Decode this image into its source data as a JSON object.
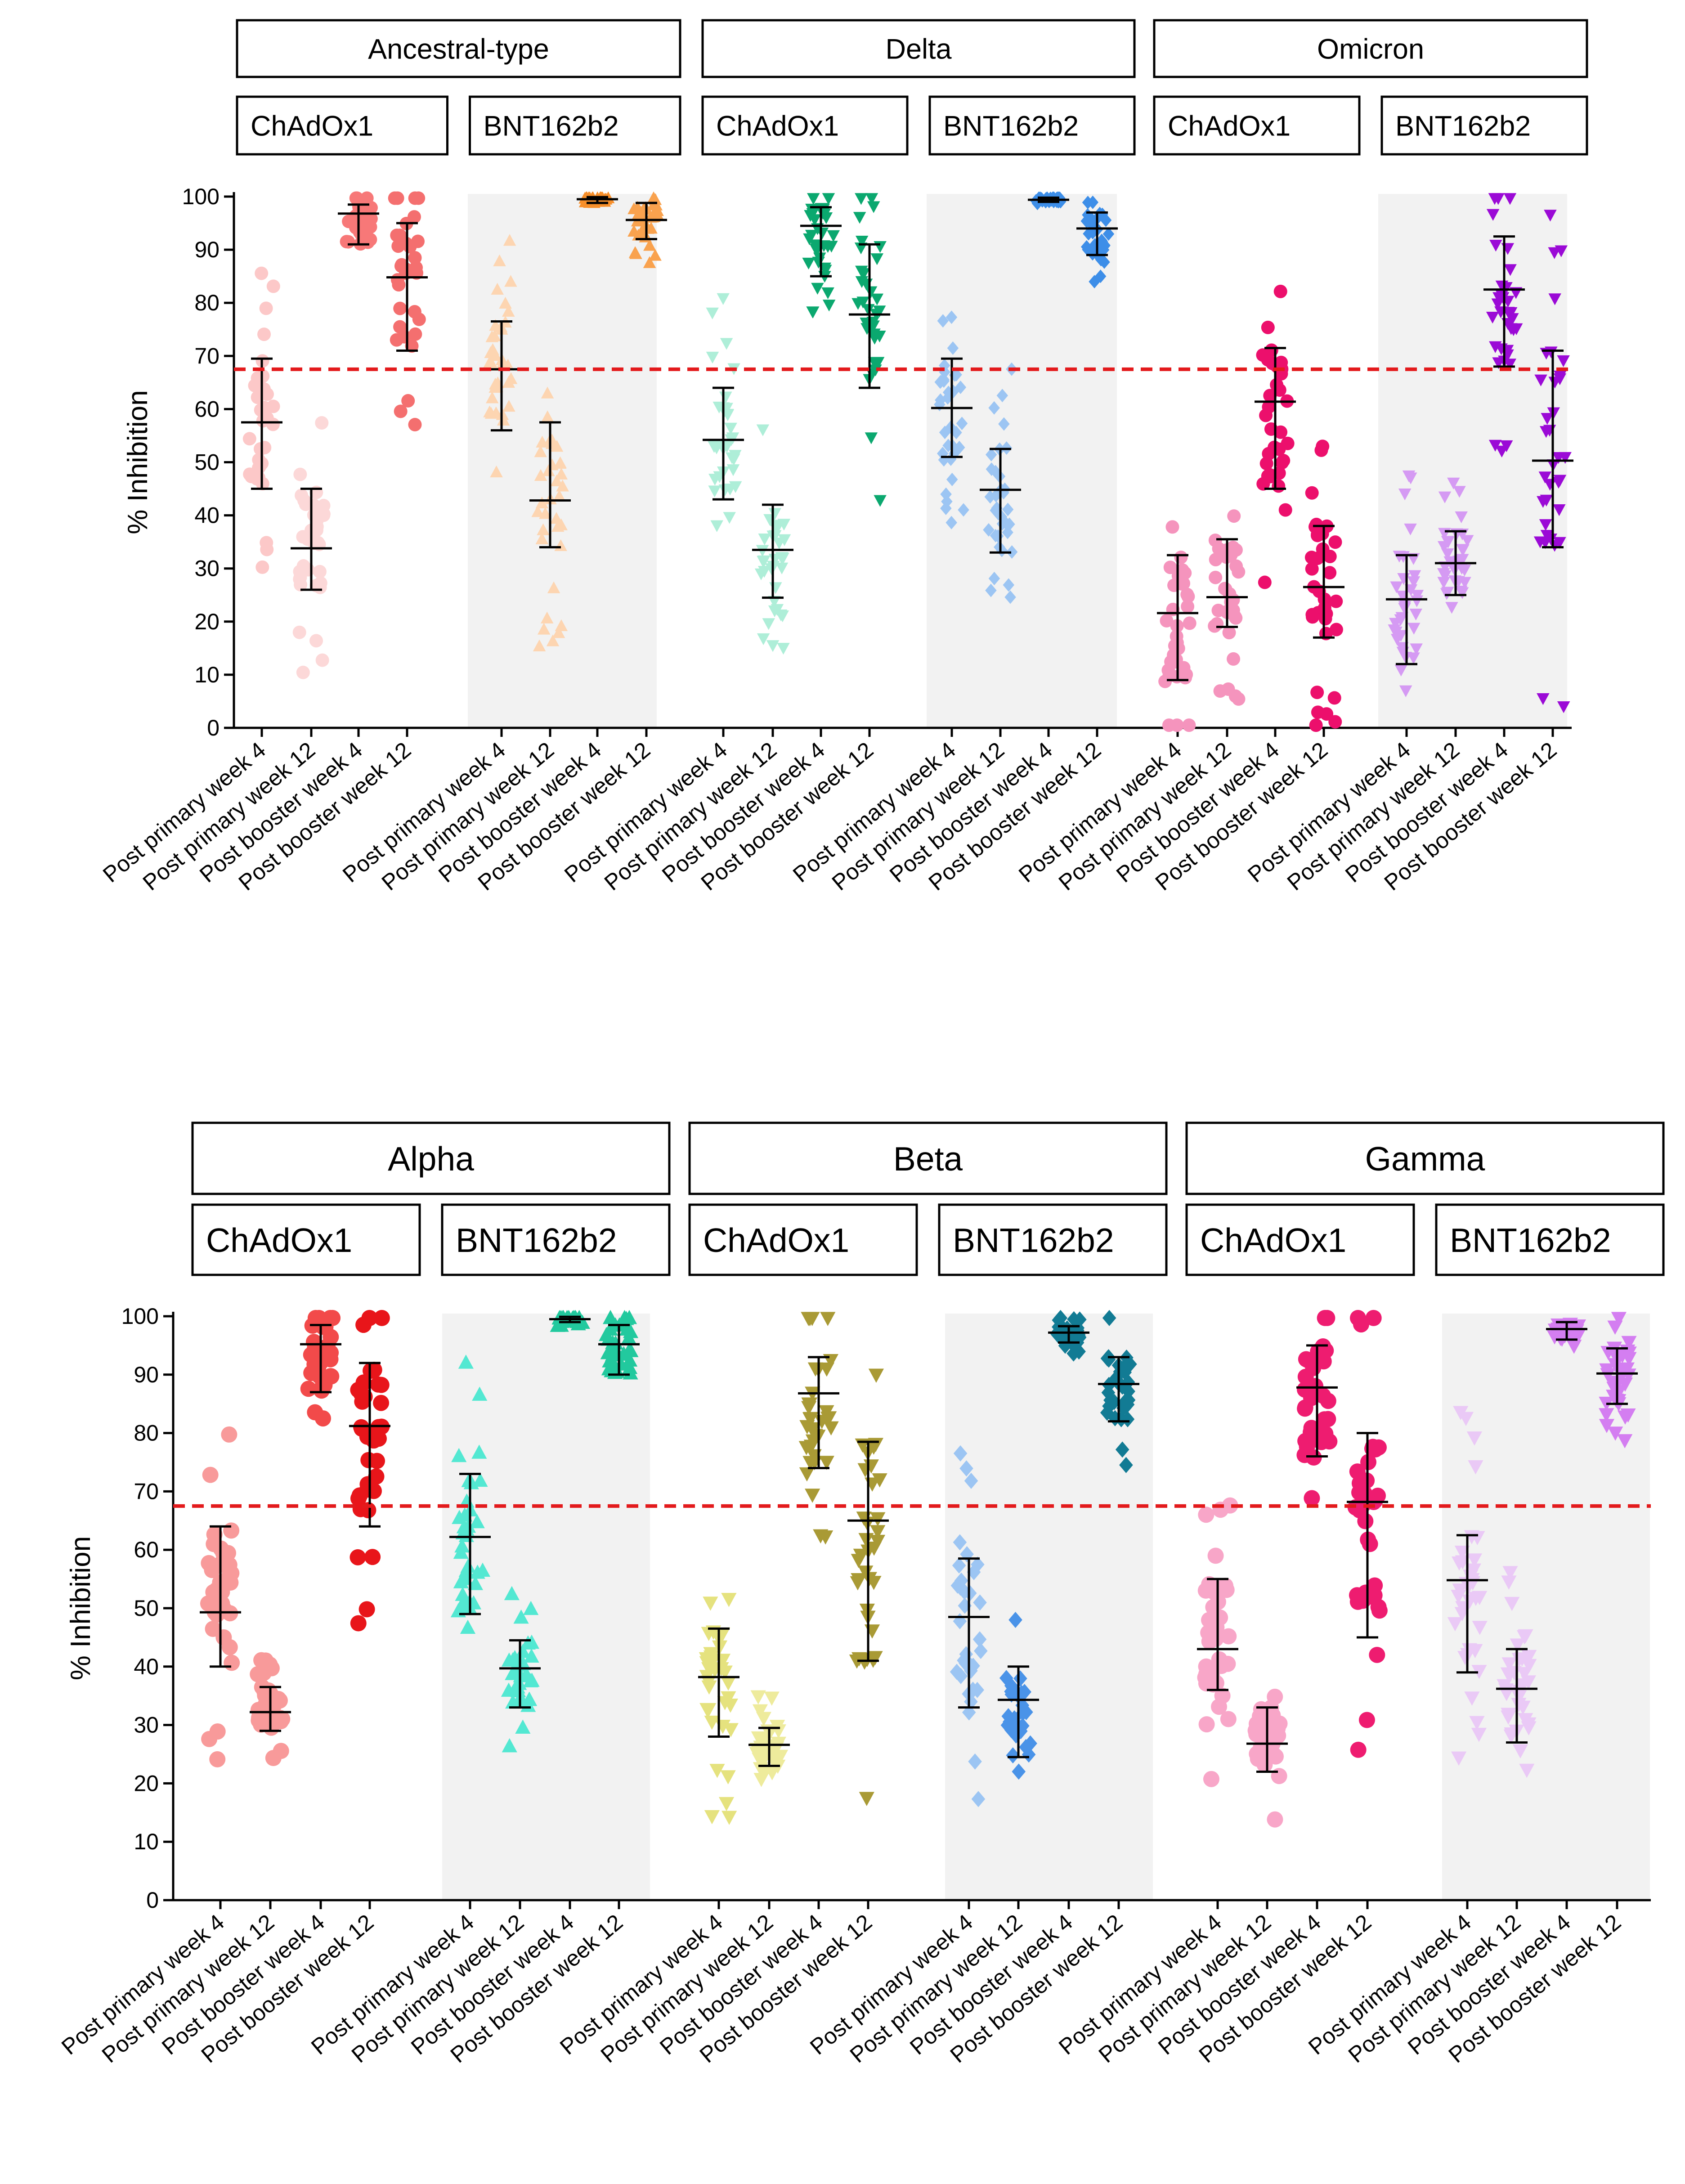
{
  "chart_data": [
    {
      "type": "scatter",
      "title": "",
      "ylabel": "% Inhibition",
      "ylim": [
        0,
        100
      ],
      "yticks": [
        0,
        10,
        20,
        30,
        40,
        50,
        60,
        70,
        80,
        90,
        100
      ],
      "threshold": 67.5,
      "categories": [
        "Post primary week 4",
        "Post primary week 12",
        "Post booster week 4",
        "Post booster week 12"
      ],
      "variants": [
        {
          "name": "Ancestral-type",
          "groups": [
            {
              "vaccine": "ChAdOx1",
              "shape": "circle",
              "colors": [
                "#fcc8c8",
                "#fcd8d8",
                "#f77878",
                "#f46f6f"
              ],
              "mean": [
                57.5,
                33.8,
                96.8,
                84.8
              ],
              "lower": [
                45,
                26,
                91,
                71
              ],
              "upper": [
                69.5,
                45,
                98.5,
                95
              ]
            },
            {
              "vaccine": "BNT162b2",
              "shape": "triangle-up",
              "colors": [
                "#fdd5b1",
                "#fdd5b1",
                "#f78f2a",
                "#f9a24e"
              ],
              "mean": [
                67.5,
                42.8,
                99.5,
                95.6
              ],
              "lower": [
                56,
                34,
                98.8,
                92
              ],
              "upper": [
                76.5,
                57.5,
                99.9,
                98.8
              ]
            }
          ]
        },
        {
          "name": "Delta",
          "groups": [
            {
              "vaccine": "ChAdOx1",
              "shape": "triangle-down",
              "colors": [
                "#aeeed8",
                "#aeeed8",
                "#0ba86f",
                "#0ba86f"
              ],
              "mean": [
                54.2,
                33.5,
                94.5,
                77.8
              ],
              "lower": [
                43,
                24.5,
                85,
                64
              ],
              "upper": [
                64,
                42,
                98,
                91
              ]
            },
            {
              "vaccine": "BNT162b2",
              "shape": "diamond",
              "colors": [
                "#9cc5f3",
                "#9cc5f3",
                "#3d8ee8",
                "#3d8ee8"
              ],
              "mean": [
                60.2,
                44.8,
                99.4,
                94
              ],
              "lower": [
                51,
                33,
                99,
                89
              ],
              "upper": [
                69.5,
                52.5,
                99.8,
                97
              ]
            }
          ]
        },
        {
          "name": "Omicron",
          "groups": [
            {
              "vaccine": "ChAdOx1",
              "shape": "circle",
              "colors": [
                "#f594bd",
                "#f594bd",
                "#ec0f6c",
                "#ec0f6c"
              ],
              "mean": [
                21.6,
                24.6,
                61.4,
                26.5
              ],
              "lower": [
                9,
                19,
                45,
                17
              ],
              "upper": [
                32.5,
                35.5,
                71.5,
                38
              ]
            },
            {
              "vaccine": "BNT162b2",
              "shape": "triangle-down",
              "colors": [
                "#d59af3",
                "#d59af3",
                "#9b0ad6",
                "#9b0ad6"
              ],
              "mean": [
                24.2,
                31,
                82.5,
                50.3
              ],
              "lower": [
                12,
                25,
                68,
                34
              ],
              "upper": [
                32.5,
                37,
                92.5,
                71
              ]
            }
          ]
        }
      ]
    },
    {
      "type": "scatter",
      "title": "",
      "ylabel": "% Inhibition",
      "ylim": [
        0,
        100
      ],
      "yticks": [
        0,
        10,
        20,
        30,
        40,
        50,
        60,
        70,
        80,
        90,
        100
      ],
      "threshold": 67.5,
      "categories": [
        "Post primary week 4",
        "Post primary week 12",
        "Post booster week 4",
        "Post booster week 12"
      ],
      "variants": [
        {
          "name": "Alpha",
          "groups": [
            {
              "vaccine": "ChAdOx1",
              "shape": "circle",
              "colors": [
                "#f89a9a",
                "#f89a9a",
                "#f24a4a",
                "#e8151a"
              ],
              "mean": [
                49.3,
                32.2,
                95.2,
                81.2
              ],
              "lower": [
                40,
                29,
                87,
                64
              ],
              "upper": [
                64,
                36.5,
                98.5,
                92
              ]
            },
            {
              "vaccine": "BNT162b2",
              "shape": "triangle-up",
              "colors": [
                "#53e8d2",
                "#53e8d2",
                "#22c99e",
                "#22c99e"
              ],
              "mean": [
                62.2,
                39.7,
                99.5,
                95.2
              ],
              "lower": [
                49,
                33,
                99,
                90
              ],
              "upper": [
                73,
                44.5,
                99.9,
                98.5
              ]
            }
          ]
        },
        {
          "name": "Beta",
          "groups": [
            {
              "vaccine": "ChAdOx1",
              "shape": "triangle-down",
              "colors": [
                "#e5e27e",
                "#eeeb9c",
                "#a99a35",
                "#a99a35"
              ],
              "mean": [
                38.2,
                26.6,
                86.8,
                65
              ],
              "lower": [
                28,
                23,
                74,
                41
              ],
              "upper": [
                46.5,
                29.5,
                93,
                78.5
              ]
            },
            {
              "vaccine": "BNT162b2",
              "shape": "diamond",
              "colors": [
                "#9cc5f3",
                "#4a93e8",
                "#127b94",
                "#127b94"
              ],
              "mean": [
                48.5,
                34.3,
                97.2,
                88.4
              ],
              "lower": [
                33,
                24.5,
                95.5,
                82
              ],
              "upper": [
                58.5,
                40,
                98.3,
                93
              ]
            }
          ]
        },
        {
          "name": "Gamma",
          "groups": [
            {
              "vaccine": "ChAdOx1",
              "shape": "circle",
              "colors": [
                "#f8a6c8",
                "#f8a6c8",
                "#ee1c70",
                "#ee1c70"
              ],
              "mean": [
                43,
                26.8,
                87.8,
                68.2
              ],
              "lower": [
                36,
                22,
                76,
                45
              ],
              "upper": [
                55,
                33,
                95,
                80
              ]
            },
            {
              "vaccine": "BNT162b2",
              "shape": "triangle-down",
              "colors": [
                "#eac9f6",
                "#eac9f6",
                "#d47ef1",
                "#d47ef1"
              ],
              "mean": [
                54.8,
                36.2,
                97.8,
                90.2
              ],
              "lower": [
                39,
                27,
                96,
                85
              ],
              "upper": [
                62.5,
                43,
                99,
                94.5
              ]
            }
          ]
        }
      ]
    }
  ]
}
